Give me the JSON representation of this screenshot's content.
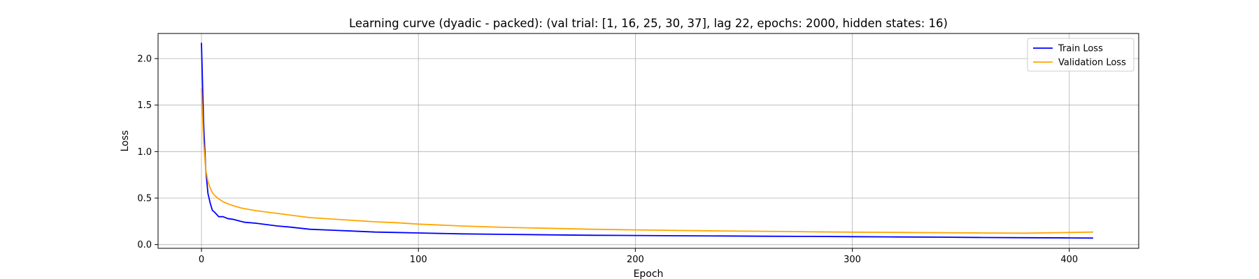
{
  "chart_data": {
    "type": "line",
    "title": "Learning curve (dyadic - packed): (val trial: [1, 16, 25, 30, 37], lag 22, epochs: 2000, hidden states: 16)",
    "xlabel": "Epoch",
    "ylabel": "Loss",
    "xlim": [
      -20,
      432
    ],
    "ylim": [
      -0.04,
      2.27
    ],
    "xticks": [
      0,
      100,
      200,
      300,
      400
    ],
    "yticks": [
      0.0,
      0.5,
      1.0,
      1.5,
      2.0
    ],
    "xtick_labels": [
      "0",
      "100",
      "200",
      "300",
      "400"
    ],
    "ytick_labels": [
      "0.0",
      "0.5",
      "1.0",
      "1.5",
      "2.0"
    ],
    "grid": true,
    "legend_position": "top-right",
    "series": [
      {
        "name": "Train Loss",
        "color": "#0000ff",
        "x": [
          0,
          1,
          2,
          3,
          4,
          5,
          6,
          8,
          10,
          12,
          15,
          18,
          20,
          25,
          30,
          35,
          40,
          50,
          60,
          70,
          80,
          90,
          100,
          120,
          140,
          160,
          180,
          200,
          220,
          240,
          260,
          280,
          300,
          320,
          340,
          360,
          380,
          400,
          411
        ],
        "y": [
          2.17,
          1.3,
          0.8,
          0.55,
          0.45,
          0.37,
          0.35,
          0.3,
          0.3,
          0.28,
          0.27,
          0.25,
          0.24,
          0.23,
          0.215,
          0.2,
          0.19,
          0.165,
          0.155,
          0.145,
          0.135,
          0.13,
          0.125,
          0.115,
          0.11,
          0.105,
          0.1,
          0.098,
          0.095,
          0.093,
          0.09,
          0.088,
          0.085,
          0.082,
          0.08,
          0.076,
          0.074,
          0.072,
          0.07
        ]
      },
      {
        "name": "Validation Loss",
        "color": "#ffa500",
        "x": [
          0,
          1,
          2,
          3,
          4,
          5,
          6,
          8,
          10,
          12,
          15,
          18,
          20,
          25,
          30,
          35,
          40,
          50,
          60,
          70,
          80,
          90,
          100,
          120,
          140,
          160,
          180,
          200,
          220,
          240,
          260,
          280,
          300,
          320,
          340,
          360,
          380,
          400,
          411
        ],
        "y": [
          1.68,
          1.1,
          0.8,
          0.68,
          0.61,
          0.56,
          0.53,
          0.49,
          0.46,
          0.44,
          0.415,
          0.395,
          0.385,
          0.365,
          0.35,
          0.335,
          0.32,
          0.29,
          0.275,
          0.26,
          0.245,
          0.235,
          0.22,
          0.2,
          0.185,
          0.175,
          0.165,
          0.158,
          0.152,
          0.147,
          0.143,
          0.138,
          0.134,
          0.131,
          0.128,
          0.125,
          0.123,
          0.13,
          0.135
        ]
      }
    ]
  }
}
